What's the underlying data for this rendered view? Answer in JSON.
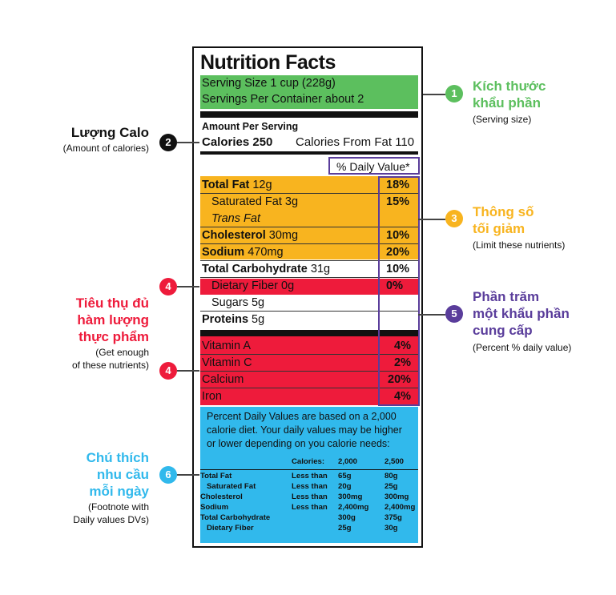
{
  "label": {
    "title": "Nutrition Facts",
    "serving_size": "Serving Size 1 cup (228g)",
    "servings_per_container": "Servings Per Container about 2",
    "amount_per_serving": "Amount Per Serving",
    "calories": "Calories 250",
    "calories_from_fat": "Calories From Fat 110",
    "daily_value_header": "% Daily Value*",
    "limit_rows": [
      {
        "name": "Total Fat",
        "amount": " 12g",
        "pct": "18%"
      },
      {
        "name": "Saturated Fat 3g",
        "amount": "",
        "pct": "15%"
      },
      {
        "name": "Trans Fat",
        "amount": "",
        "pct": ""
      },
      {
        "name": "Cholesterol",
        "amount": " 30mg",
        "pct": "10%"
      },
      {
        "name": "Sodium",
        "amount": " 470mg",
        "pct": "20%"
      }
    ],
    "carb_row": {
      "name": "Total Carbohydrate",
      "amount": " 31g",
      "pct": "10%"
    },
    "fiber_row": {
      "name": "Dietary Fiber 0g",
      "pct": "0%"
    },
    "sugars_row": {
      "name": "Sugars 5g"
    },
    "protein_row": {
      "name": "Proteins",
      "amount": " 5g"
    },
    "vitamins": [
      {
        "name": "Vitamin A",
        "pct": "4%"
      },
      {
        "name": "Vitamin C",
        "pct": "2%"
      },
      {
        "name": "Calcium",
        "pct": "20%"
      },
      {
        "name": "Iron",
        "pct": "4%"
      }
    ],
    "footnote": {
      "text_lines": [
        "Percent Daily Values are based on a 2,000",
        "calorie diet. Your daily values may be higher",
        "or lower depending on you calorie needs:"
      ],
      "header": [
        "Calories:",
        "2,000",
        "2,500"
      ],
      "rows": [
        {
          "name": "Total Fat",
          "cond": "Less than",
          "v1": "65g",
          "v2": "80g"
        },
        {
          "name": "Saturated Fat",
          "cond": "Less than",
          "v1": "20g",
          "v2": "25g"
        },
        {
          "name": "Cholesterol",
          "cond": "Less than",
          "v1": "300mg",
          "v2": "300mg"
        },
        {
          "name": "Sodium",
          "cond": "Less than",
          "v1": "2,400mg",
          "v2": "2,400mg"
        },
        {
          "name": "Total Carbohydrate",
          "cond": "",
          "v1": "300g",
          "v2": "375g"
        },
        {
          "name": "Dietary Fiber",
          "cond": "",
          "v1": "25g",
          "v2": "30g"
        }
      ]
    }
  },
  "annotations": {
    "a1": {
      "num": "1",
      "title1": "Kích thước",
      "title2": "khẩu phần",
      "sub": "(Serving size)"
    },
    "a2": {
      "num": "2",
      "title": "Lượng Calo",
      "sub": "(Amount of calories)"
    },
    "a3": {
      "num": "3",
      "title1": "Thông số",
      "title2": "tối giảm",
      "sub": "(Limit these nutrients)"
    },
    "a4": {
      "num": "4",
      "title1": "Tiêu thụ đủ",
      "title2": "hàm lượng",
      "title3": "thực phẩm",
      "sub1": "(Get enough",
      "sub2": "of these nutrients)"
    },
    "a4b": {
      "num": "4"
    },
    "a5": {
      "num": "5",
      "title1": "Phần trăm",
      "title2": "một khẩu phần",
      "title3": "cung cấp",
      "sub": "(Percent % daily value)"
    },
    "a6": {
      "num": "6",
      "title1": "Chú thích",
      "title2": "nhu cầu",
      "title3": "mỗi ngày",
      "sub1": "(Footnote with",
      "sub2": "Daily values DVs)"
    }
  },
  "colors": {
    "green": "#5cbf5e",
    "orange": "#f8b41f",
    "red": "#ee1b3b",
    "blue": "#31b9ec",
    "purple": "#5a3d9b",
    "black": "#111111"
  }
}
